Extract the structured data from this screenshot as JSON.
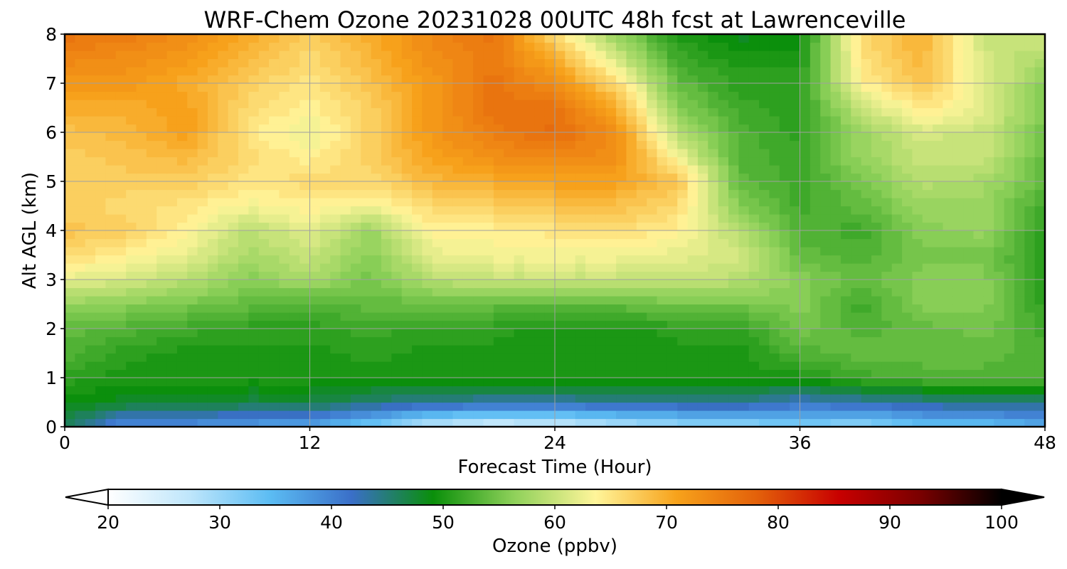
{
  "chart_data": {
    "type": "heatmap",
    "title": "WRF-Chem Ozone  20231028 00UTC 48h fcst at Lawrenceville",
    "xlabel": "Forecast Time (Hour)",
    "ylabel": "Alt AGL (km)",
    "xlim": [
      0,
      48
    ],
    "ylim": [
      0,
      8
    ],
    "x_ticks": [
      "0",
      "12",
      "24",
      "36",
      "48"
    ],
    "y_ticks": [
      "0",
      "1",
      "2",
      "3",
      "4",
      "5",
      "6",
      "7",
      "8"
    ],
    "grid": true,
    "colorbar": {
      "label": "Ozone  (ppbv)",
      "range": [
        20,
        100
      ],
      "ticks": [
        "20",
        "30",
        "40",
        "50",
        "60",
        "70",
        "80",
        "90",
        "100"
      ],
      "extend": "both",
      "colors": [
        "#ffffff",
        "#bfe6fb",
        "#5bbcf3",
        "#3a6fc8",
        "#0a8f0a",
        "#8fd15a",
        "#fff59a",
        "#f7a21b",
        "#e3600a",
        "#c80000",
        "#7a0000",
        "#000000"
      ]
    },
    "x_hours": [
      0,
      3,
      6,
      9,
      12,
      15,
      18,
      21,
      24,
      27,
      30,
      33,
      36,
      39,
      42,
      45,
      48
    ],
    "y_km": [
      0,
      0.5,
      1,
      1.5,
      2,
      2.5,
      3,
      3.5,
      4,
      4.5,
      5,
      5.5,
      6,
      6.5,
      7,
      7.5,
      8
    ],
    "values_ppbv": [
      [
        46,
        38,
        38,
        37,
        36,
        32,
        26,
        24,
        25,
        27,
        29,
        30,
        31,
        30,
        33,
        33,
        36
      ],
      [
        49,
        48,
        48,
        47,
        47,
        45,
        44,
        43,
        43,
        44,
        44,
        44,
        42,
        43,
        44,
        45,
        45
      ],
      [
        51,
        50,
        50,
        50,
        50,
        50,
        50,
        50,
        50,
        50,
        50,
        50,
        50,
        52,
        53,
        53,
        53
      ],
      [
        53,
        51,
        50,
        50,
        50,
        51,
        50,
        50,
        50,
        50,
        50,
        50,
        53,
        54,
        54,
        54,
        53
      ],
      [
        54,
        53,
        52,
        51,
        51,
        52,
        51,
        51,
        50,
        50,
        51,
        51,
        55,
        53,
        54,
        55,
        52
      ],
      [
        57,
        56,
        55,
        54,
        53,
        54,
        54,
        54,
        54,
        54,
        55,
        55,
        56,
        52,
        56,
        56,
        51
      ],
      [
        62,
        61,
        59,
        56,
        58,
        55,
        59,
        60,
        60,
        60,
        60,
        59,
        56,
        54,
        56,
        56,
        51
      ],
      [
        66,
        64,
        62,
        58,
        60,
        56,
        62,
        63,
        63,
        63,
        62,
        61,
        54,
        53,
        55,
        55,
        51
      ],
      [
        68,
        67,
        64,
        59,
        62,
        57,
        64,
        64,
        65,
        66,
        64,
        59,
        53,
        52,
        56,
        57,
        51
      ],
      [
        67,
        66,
        65,
        63,
        64,
        63,
        66,
        67,
        68,
        68,
        66,
        56,
        52,
        54,
        57,
        57,
        52
      ],
      [
        67,
        67,
        67,
        65,
        66,
        66,
        69,
        70,
        71,
        71,
        68,
        54,
        52,
        55,
        59,
        58,
        54
      ],
      [
        67,
        68,
        69,
        66,
        64,
        67,
        71,
        73,
        74,
        73,
        63,
        53,
        52,
        57,
        60,
        60,
        54
      ],
      [
        68,
        69,
        71,
        65,
        62,
        67,
        72,
        75,
        77,
        73,
        59,
        53,
        51,
        57,
        61,
        60,
        55
      ],
      [
        70,
        70,
        71,
        66,
        64,
        67,
        72,
        76,
        76,
        70,
        56,
        52,
        51,
        60,
        65,
        62,
        55
      ],
      [
        72,
        72,
        70,
        67,
        65,
        68,
        72,
        76,
        73,
        66,
        54,
        51,
        51,
        64,
        68,
        62,
        56
      ],
      [
        74,
        73,
        72,
        69,
        66,
        69,
        73,
        75,
        70,
        61,
        52,
        50,
        50,
        65,
        69,
        61,
        58
      ],
      [
        76,
        75,
        73,
        70,
        67,
        70,
        74,
        76,
        66,
        57,
        50,
        48,
        49,
        66,
        70,
        60,
        61
      ]
    ]
  }
}
